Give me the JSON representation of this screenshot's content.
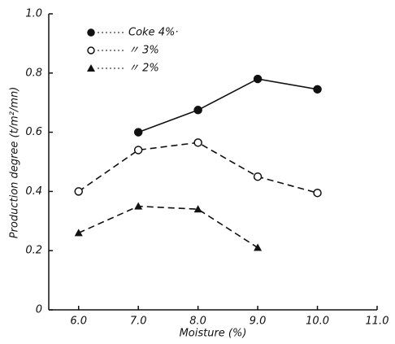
{
  "chart_data": {
    "type": "line",
    "x_label": "Moisture (%)",
    "y_label": "Production degree (t/m²/mn)",
    "xlim": [
      5.5,
      11.0
    ],
    "xticks": [
      {
        "value": 6,
        "label": "6.0"
      },
      {
        "value": 7,
        "label": "7.0"
      },
      {
        "value": 8,
        "label": "8.0"
      },
      {
        "value": 9,
        "label": "9.0"
      },
      {
        "value": 10,
        "label": "10.0"
      },
      {
        "value": 11,
        "label": "11.0"
      }
    ],
    "ylim": [
      0,
      1.0
    ],
    "yticks": [
      0,
      0.2,
      0.4,
      0.6,
      0.8,
      {
        "value": 1,
        "label": "1.0"
      }
    ],
    "grid": false,
    "legend": "upper-left",
    "series": [
      {
        "name": "Coke 4%·",
        "color": "#111111",
        "line_style": "solid",
        "marker": "filled-circle",
        "x": [
          7,
          8,
          9,
          10
        ],
        "values": [
          0.6,
          0.675,
          0.78,
          0.745
        ]
      },
      {
        "name": "〃 3%",
        "color": "#111111",
        "line_style": "dashed",
        "marker": "open-circle",
        "x": [
          6,
          7,
          8,
          9,
          10
        ],
        "values": [
          0.4,
          0.54,
          0.565,
          0.45,
          0.395
        ]
      },
      {
        "name": "〃 2%",
        "color": "#111111",
        "line_style": "dashed",
        "marker": "filled-triangle",
        "x": [
          6,
          7,
          8,
          9
        ],
        "values": [
          0.26,
          0.35,
          0.34,
          0.21
        ]
      }
    ]
  }
}
